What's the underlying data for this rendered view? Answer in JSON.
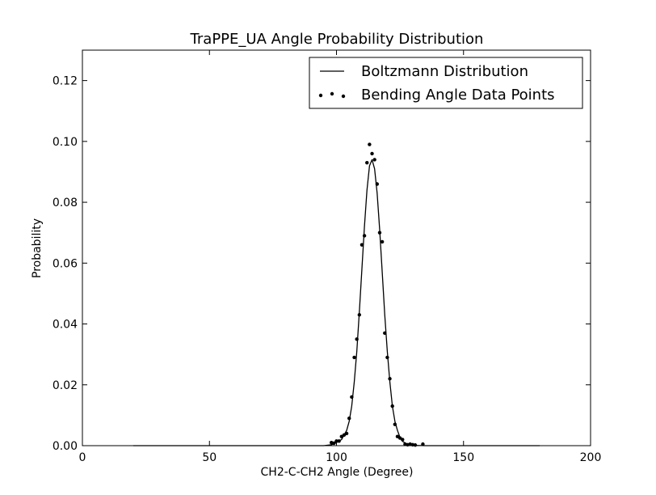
{
  "chart_data": {
    "type": "line",
    "title": "TraPPE_UA Angle Probability Distribution",
    "xlabel": "CH2-C-CH2 Angle (Degree)",
    "ylabel": "Probability",
    "xlim": [
      0,
      200
    ],
    "ylim": [
      0,
      0.13
    ],
    "xticks": [
      0,
      50,
      100,
      150,
      200
    ],
    "xtick_labels": [
      "0",
      "50",
      "100",
      "150",
      "200"
    ],
    "yticks": [
      0,
      0.02,
      0.04,
      0.06,
      0.08,
      0.1,
      0.12
    ],
    "ytick_labels": [
      "0.00",
      "0.02",
      "0.04",
      "0.06",
      "0.08",
      "0.10",
      "0.12"
    ],
    "grid": false,
    "legend_position": "top-right",
    "series": [
      {
        "name": "Boltzmann Distribution",
        "style": "line",
        "color": "#000000",
        "x": [
          20,
          60,
          95,
          98,
          100,
          102,
          104,
          105,
          106,
          107,
          108,
          109,
          110,
          111,
          112,
          113,
          114,
          115,
          116,
          117,
          118,
          119,
          120,
          121,
          122,
          123,
          124,
          125,
          126,
          128,
          130,
          135,
          150,
          180
        ],
        "y": [
          0.0,
          0.0,
          0.0,
          0.0003,
          0.001,
          0.002,
          0.005,
          0.008,
          0.013,
          0.021,
          0.031,
          0.044,
          0.058,
          0.072,
          0.084,
          0.092,
          0.094,
          0.091,
          0.083,
          0.071,
          0.057,
          0.043,
          0.031,
          0.021,
          0.013,
          0.008,
          0.005,
          0.0027,
          0.0014,
          0.0004,
          0.0001,
          0.0,
          0.0,
          0.0
        ]
      },
      {
        "name": "Bending Angle Data Points",
        "style": "points",
        "color": "#000000",
        "x": [
          98,
          99,
          100,
          101,
          102,
          103,
          104,
          105,
          106,
          107,
          108,
          109,
          110,
          111,
          112,
          113,
          114,
          115,
          116,
          117,
          118,
          119,
          120,
          121,
          122,
          123,
          124,
          125,
          126,
          127,
          128,
          129,
          130,
          131,
          134
        ],
        "y": [
          0.001,
          0.0008,
          0.0015,
          0.0015,
          0.003,
          0.0035,
          0.004,
          0.009,
          0.016,
          0.029,
          0.035,
          0.043,
          0.066,
          0.069,
          0.093,
          0.099,
          0.096,
          0.094,
          0.086,
          0.07,
          0.067,
          0.037,
          0.029,
          0.022,
          0.013,
          0.007,
          0.003,
          0.0025,
          0.002,
          0.0005,
          0.0003,
          0.0005,
          0.0003,
          0.0002,
          0.0005
        ]
      }
    ]
  }
}
